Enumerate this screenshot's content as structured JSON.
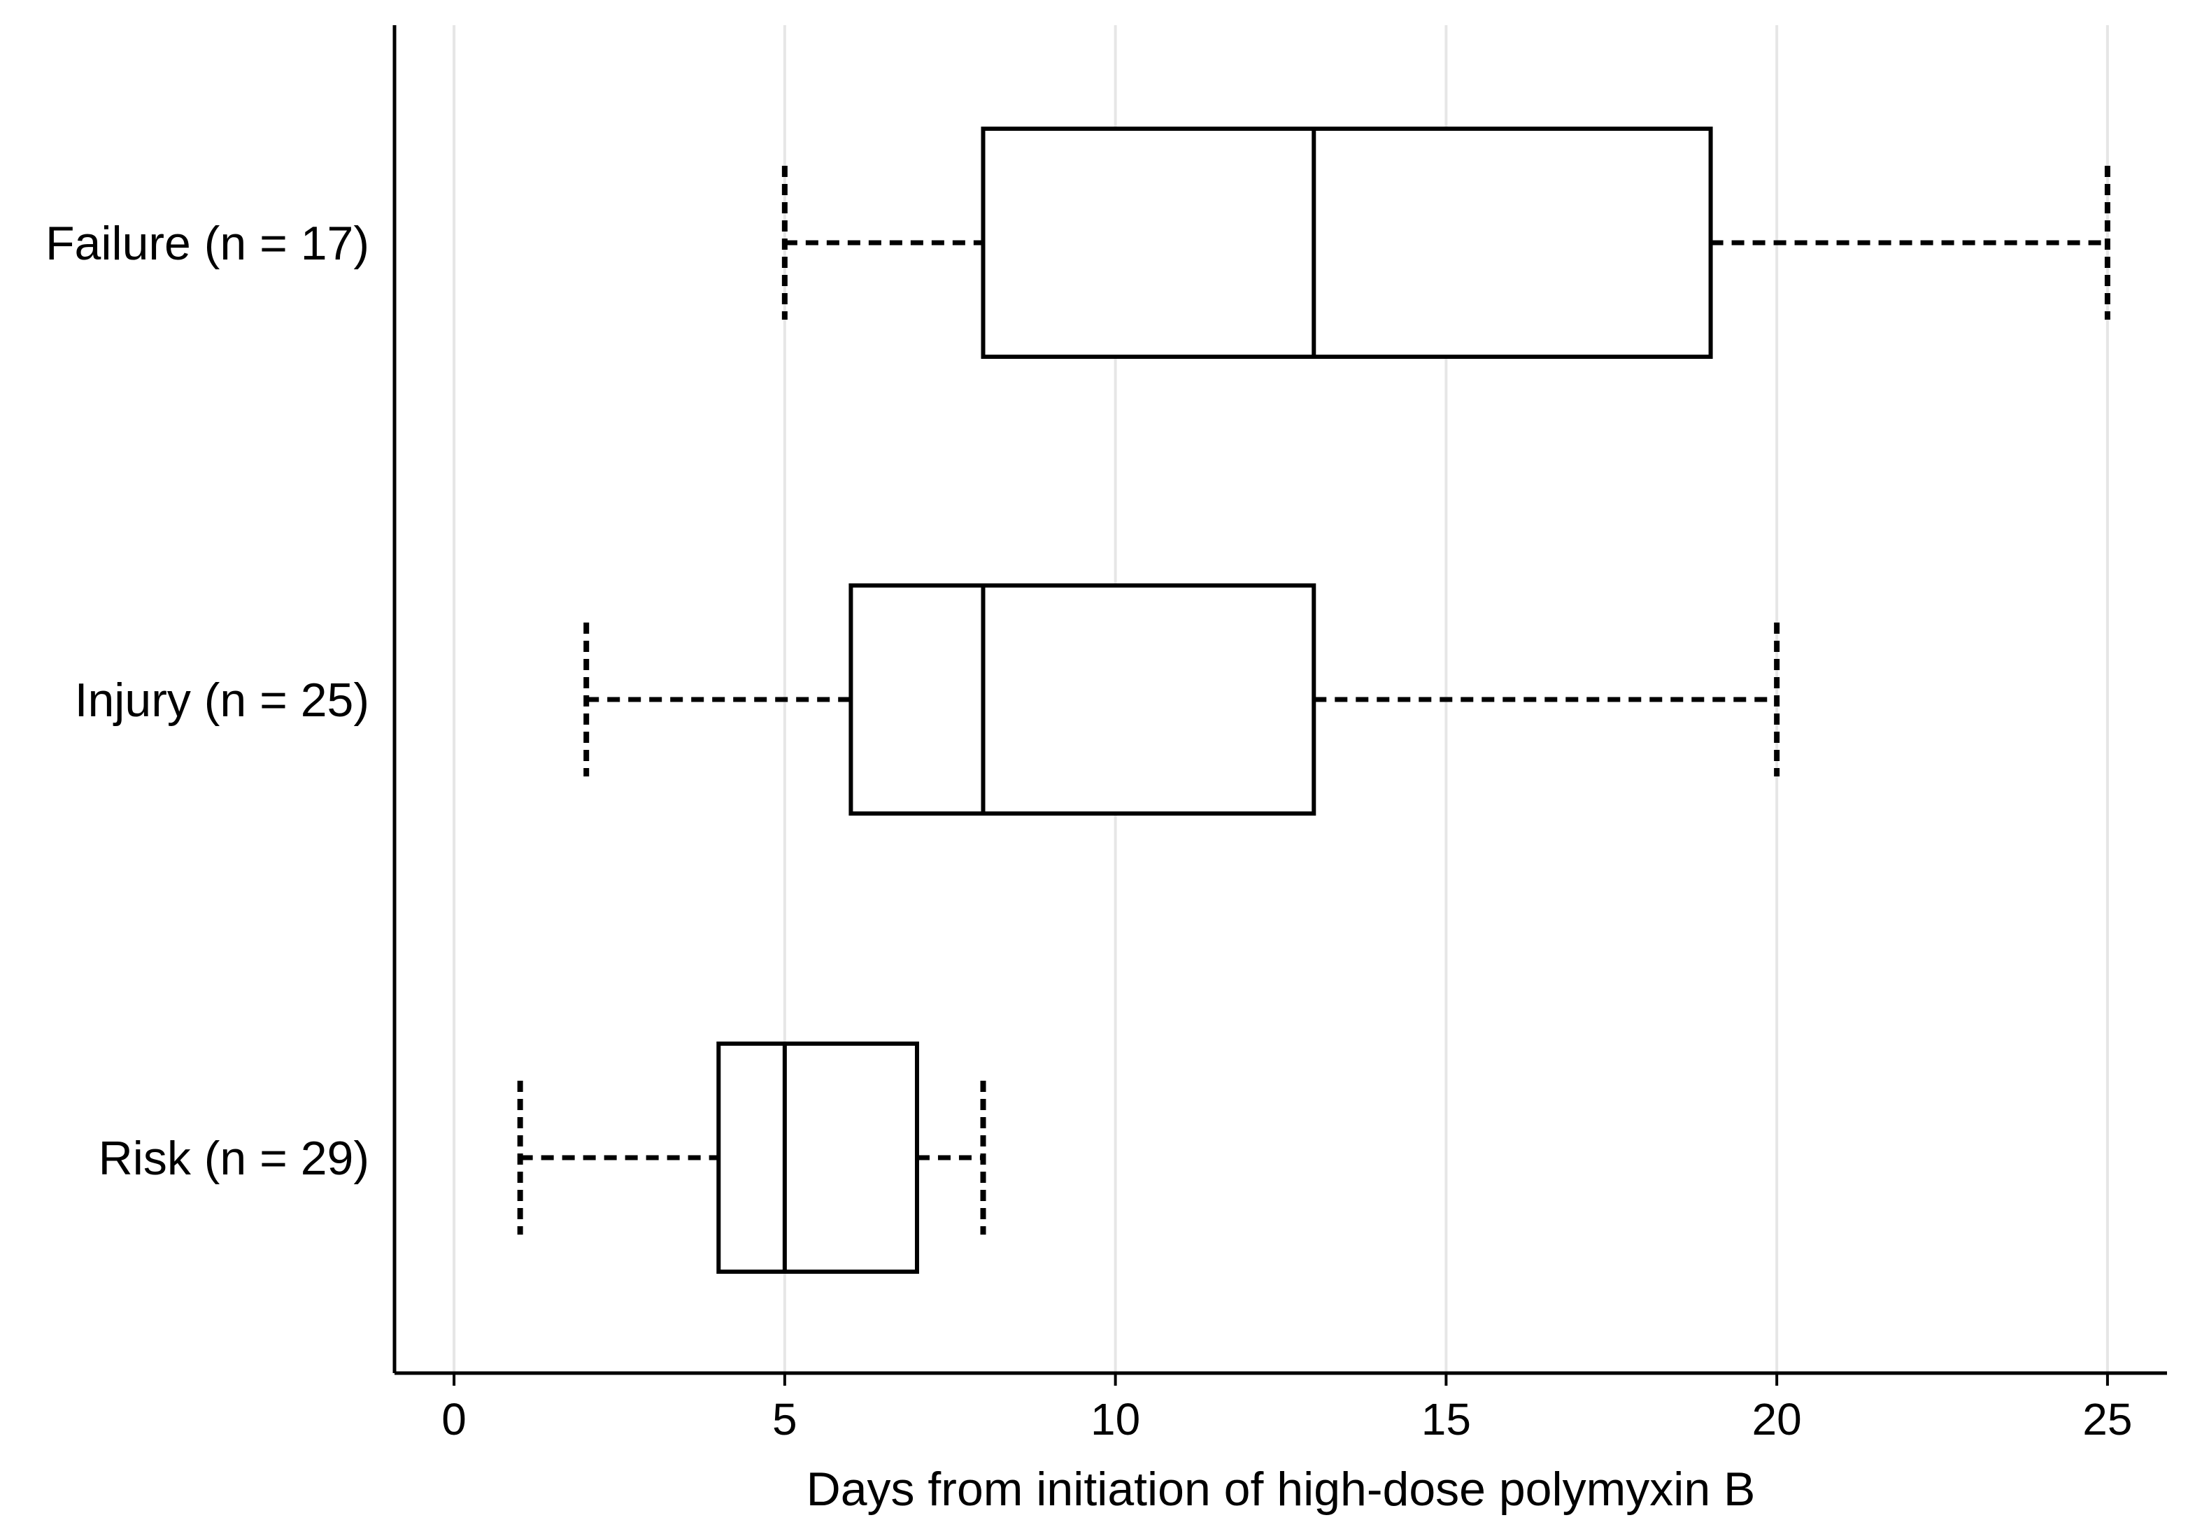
{
  "chart_data": {
    "type": "box",
    "orientation": "horizontal",
    "xlabel": "Days from initiation of high-dose polymyxin B",
    "ylabel": "",
    "title": "",
    "xlim": [
      -0.9,
      25.9
    ],
    "xticks": [
      0,
      5,
      10,
      15,
      20,
      25
    ],
    "xtick_labels": [
      "0",
      "5",
      "10",
      "15",
      "20",
      "25"
    ],
    "grid": "vertical",
    "categories": [
      "Failure (n = 17)",
      "Injury (n = 25)",
      "Risk (n = 29)"
    ],
    "boxes": [
      {
        "min": 5,
        "q1": 8,
        "median": 13,
        "q3": 19,
        "max": 25
      },
      {
        "min": 2,
        "q1": 6,
        "median": 8,
        "q3": 13,
        "max": 20
      },
      {
        "min": 1,
        "q1": 4,
        "median": 5,
        "q3": 7,
        "max": 8
      }
    ],
    "colors": {
      "box_stroke": "#000000",
      "box_fill": "#ffffff",
      "grid": "#e6e6e6"
    }
  }
}
